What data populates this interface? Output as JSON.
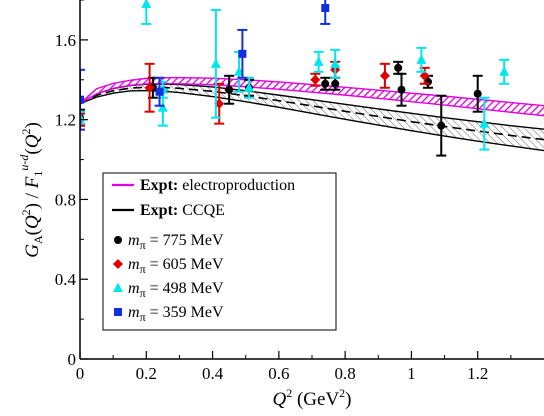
{
  "chart_data": {
    "type": "scatter",
    "xlabel": "Q² (GeV²)",
    "ylabel": "G_A(Q²) / F_1^{u-d}(Q²)",
    "xlim": [
      0,
      1.4
    ],
    "ylim": [
      0,
      1.8
    ],
    "x_ticks": [
      "0",
      "0.2",
      "0.4",
      "0.6",
      "0.8",
      "1",
      "1.2"
    ],
    "y_ticks": [
      "0",
      "0.4",
      "0.8",
      "1.2",
      "1.6"
    ],
    "legend_position": "bottom-left",
    "colors": {
      "magenta": "#e000e0",
      "black": "#000000",
      "red": "#e00000",
      "cyan": "#00e5ee",
      "blue": "#1030e0"
    },
    "bands": [
      {
        "name": "electroproduction",
        "label_bold": "Expt:",
        "label_rest": " electroproduction",
        "color": "#e000e0",
        "x": [
          0,
          0.05,
          0.1,
          0.15,
          0.2,
          0.25,
          0.3,
          0.4,
          0.5,
          0.6,
          0.7,
          0.8,
          0.9,
          1.0,
          1.1,
          1.2,
          1.3,
          1.4
        ],
        "lower": [
          1.28,
          1.33,
          1.357,
          1.372,
          1.38,
          1.381,
          1.38,
          1.375,
          1.365,
          1.352,
          1.338,
          1.323,
          1.307,
          1.29,
          1.273,
          1.255,
          1.237,
          1.22
        ],
        "central": [
          1.28,
          1.343,
          1.37,
          1.385,
          1.393,
          1.396,
          1.396,
          1.392,
          1.382,
          1.37,
          1.357,
          1.343,
          1.328,
          1.312,
          1.296,
          1.279,
          1.262,
          1.245
        ],
        "upper": [
          1.28,
          1.355,
          1.382,
          1.397,
          1.407,
          1.41,
          1.411,
          1.408,
          1.4,
          1.389,
          1.376,
          1.362,
          1.348,
          1.333,
          1.318,
          1.302,
          1.286,
          1.27
        ]
      },
      {
        "name": "CCQE",
        "label_bold": "Expt:",
        "label_rest": " CCQE",
        "color": "#000000",
        "x": [
          0,
          0.05,
          0.1,
          0.15,
          0.2,
          0.25,
          0.3,
          0.4,
          0.5,
          0.6,
          0.7,
          0.8,
          0.9,
          1.0,
          1.1,
          1.2,
          1.3,
          1.4
        ],
        "lower": [
          1.28,
          1.313,
          1.333,
          1.344,
          1.346,
          1.343,
          1.336,
          1.316,
          1.29,
          1.262,
          1.232,
          1.202,
          1.173,
          1.145,
          1.118,
          1.092,
          1.068,
          1.045
        ],
        "central": [
          1.28,
          1.322,
          1.345,
          1.358,
          1.363,
          1.362,
          1.357,
          1.342,
          1.32,
          1.295,
          1.269,
          1.242,
          1.216,
          1.19,
          1.166,
          1.143,
          1.121,
          1.1
        ],
        "upper": [
          1.28,
          1.33,
          1.356,
          1.371,
          1.378,
          1.378,
          1.376,
          1.364,
          1.345,
          1.323,
          1.3,
          1.277,
          1.254,
          1.232,
          1.21,
          1.19,
          1.17,
          1.152
        ]
      }
    ],
    "series": [
      {
        "name": "m_π = 775 MeV",
        "label_var": "m",
        "label_sub": "π",
        "label_rest": " = 775 MeV",
        "color": "#000000",
        "marker": "circle",
        "points": [
          {
            "x": 0.0,
            "y": 1.21,
            "err": 0.04
          },
          {
            "x": 0.22,
            "y": 1.36,
            "err": 0.05
          },
          {
            "x": 0.45,
            "y": 1.35,
            "err": 0.07
          },
          {
            "x": 0.51,
            "y": 1.36,
            "err": 0.04
          },
          {
            "x": 0.74,
            "y": 1.38,
            "err": 0.03
          },
          {
            "x": 0.77,
            "y": 1.38,
            "err": 0.03
          },
          {
            "x": 0.96,
            "y": 1.46,
            "err": 0.03
          },
          {
            "x": 0.97,
            "y": 1.35,
            "err": 0.08
          },
          {
            "x": 1.05,
            "y": 1.39,
            "err": 0.03
          },
          {
            "x": 1.09,
            "y": 1.17,
            "err": 0.15
          },
          {
            "x": 1.2,
            "y": 1.33,
            "err": 0.09
          }
        ]
      },
      {
        "name": "m_π = 605 MeV",
        "label_var": "m",
        "label_sub": "π",
        "label_rest": " = 605 MeV",
        "color": "#e00000",
        "marker": "diamond",
        "points": [
          {
            "x": 0.0,
            "y": 1.2,
            "err": 0.03
          },
          {
            "x": 0.21,
            "y": 1.36,
            "err": 0.12
          },
          {
            "x": 0.42,
            "y": 1.28,
            "err": 0.1
          },
          {
            "x": 0.71,
            "y": 1.4,
            "err": 0.03
          },
          {
            "x": 0.92,
            "y": 1.42,
            "err": 0.06
          },
          {
            "x": 0.77,
            "y": 1.45,
            "err": 0.04
          },
          {
            "x": 1.04,
            "y": 1.42,
            "err": 0.04
          }
        ]
      },
      {
        "name": "m_π = 498 MeV",
        "label_var": "m",
        "label_sub": "π",
        "label_rest": " = 498 MeV",
        "color": "#00e5ee",
        "marker": "triangle",
        "points": [
          {
            "x": 0.0,
            "y": 1.21,
            "err": 0.03
          },
          {
            "x": 0.2,
            "y": 1.78,
            "err": 0.1
          },
          {
            "x": 0.25,
            "y": 1.35,
            "err": 0.04
          },
          {
            "x": 0.25,
            "y": 1.26,
            "err": 0.09
          },
          {
            "x": 0.41,
            "y": 1.48,
            "err": 0.27
          },
          {
            "x": 0.48,
            "y": 1.44,
            "err": 0.1
          },
          {
            "x": 0.51,
            "y": 1.36,
            "err": 0.05
          },
          {
            "x": 0.72,
            "y": 1.49,
            "err": 0.05
          },
          {
            "x": 0.77,
            "y": 1.48,
            "err": 0.07
          },
          {
            "x": 1.03,
            "y": 1.5,
            "err": 0.06
          },
          {
            "x": 1.22,
            "y": 1.18,
            "err": 0.13
          },
          {
            "x": 1.28,
            "y": 1.44,
            "err": 0.06
          }
        ]
      },
      {
        "name": "m_π = 359 MeV",
        "label_var": "m",
        "label_sub": "π",
        "label_rest": " = 359 MeV",
        "color": "#1030e0",
        "marker": "square",
        "points": [
          {
            "x": 0.0,
            "y": 1.3,
            "err": 0.15
          },
          {
            "x": 0.24,
            "y": 1.34,
            "err": 0.07
          },
          {
            "x": 0.49,
            "y": 1.53,
            "err": 0.12
          },
          {
            "x": 0.74,
            "y": 1.76,
            "err": 0.08
          }
        ]
      }
    ]
  }
}
